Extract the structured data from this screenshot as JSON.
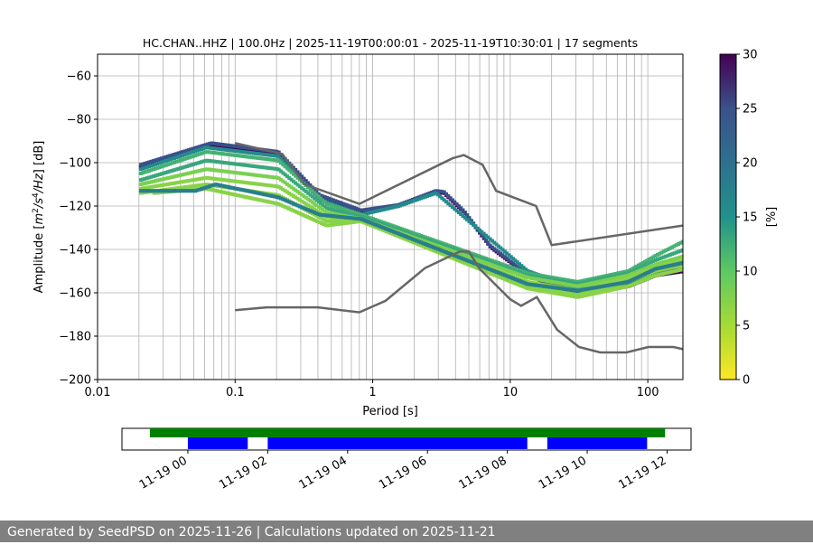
{
  "title": "HC.CHAN..HHZ | 100.0Hz | 2025-11-19T00:00:01 - 2025-11-19T10:30:01 | 17 segments",
  "footer": "Generated by SeedPSD on 2025-11-26 | Calculations updated on 2025-11-21",
  "colors": {
    "noise_model": "#666666",
    "grid": "#b0b0b0",
    "coverage_bar": "#008000",
    "segment_bar": "#0000ff",
    "footer_bg": "#808080"
  },
  "chart_data": [
    {
      "type": "heatmap",
      "title": "HC.CHAN..HHZ | 100.0Hz | 2025-11-19T00:00:01 - 2025-11-19T10:30:01 | 17 segments",
      "xlabel": "Period [s]",
      "ylabel": "Amplitude [m²/s⁴/Hz] [dB]",
      "ylabel_parts": [
        "Amplitude [",
        "m",
        "2",
        "/",
        "s",
        "4",
        "/",
        "Hz",
        "] [dB]"
      ],
      "x_scale": "log",
      "xlim": [
        0.01,
        180
      ],
      "ylim": [
        -200,
        -50
      ],
      "x_ticks": [
        0.01,
        0.1,
        1,
        10,
        100
      ],
      "x_tick_labels": [
        "0.01",
        "0.1",
        "1",
        "10",
        "100"
      ],
      "y_ticks": [
        -200,
        -180,
        -160,
        -140,
        -120,
        -100,
        -80,
        -60
      ],
      "y_tick_labels": [
        "−200",
        "−180",
        "−160",
        "−140",
        "−120",
        "−100",
        "−80",
        "−60"
      ],
      "grid": true,
      "colorbar": {
        "label": "[%]",
        "range": [
          0,
          30
        ],
        "ticks": [
          0,
          5,
          10,
          15,
          20,
          25,
          30
        ],
        "tick_labels": [
          "0",
          "5",
          "10",
          "15",
          "20",
          "25",
          "30"
        ],
        "colormap": "viridis_r"
      },
      "noise_models": [
        {
          "name": "high",
          "points": [
            [
              0.1,
              -91
            ],
            [
              0.22,
              -96
            ],
            [
              0.32,
              -110
            ],
            [
              0.8,
              -119
            ],
            [
              3.8,
              -98
            ],
            [
              4.6,
              -96.5
            ],
            [
              6.3,
              -101
            ],
            [
              7.9,
              -113
            ],
            [
              15.4,
              -120
            ],
            [
              20,
              -138
            ],
            [
              180,
              -129
            ]
          ]
        },
        {
          "name": "low",
          "points": [
            [
              0.1,
              -168
            ],
            [
              0.17,
              -166.7
            ],
            [
              0.4,
              -166.7
            ],
            [
              0.8,
              -169
            ],
            [
              1.24,
              -163.7
            ],
            [
              2.4,
              -148.6
            ],
            [
              4.3,
              -141
            ],
            [
              5.0,
              -141
            ],
            [
              6.0,
              -149
            ],
            [
              10,
              -163
            ],
            [
              12,
              -166
            ],
            [
              15.6,
              -162
            ],
            [
              21.9,
              -177
            ],
            [
              31.6,
              -185
            ],
            [
              45,
              -187.5
            ],
            [
              70,
              -187.5
            ],
            [
              101,
              -185
            ],
            [
              154,
              -185
            ],
            [
              180,
              -186
            ]
          ]
        }
      ],
      "psd_curves": [
        {
          "pct": 30,
          "points": [
            [
              0.02,
              -102
            ],
            [
              0.065,
              -92
            ],
            [
              0.2,
              -96
            ],
            [
              0.4,
              -116
            ],
            [
              0.8,
              -123
            ],
            [
              1.5,
              -120
            ],
            [
              2.8,
              -113.5
            ],
            [
              3.2,
              -114
            ],
            [
              4.5,
              -123
            ],
            [
              7,
              -139
            ],
            [
              10,
              -146.5
            ],
            [
              13,
              -152
            ],
            [
              30,
              -161
            ],
            [
              70,
              -157
            ],
            [
              110,
              -152
            ],
            [
              180,
              -150
            ]
          ]
        },
        {
          "pct": 25,
          "points": [
            [
              0.02,
              -101
            ],
            [
              0.065,
              -91
            ],
            [
              0.2,
              -95
            ],
            [
              0.4,
              -115
            ],
            [
              0.8,
              -122
            ],
            [
              1.5,
              -119.5
            ],
            [
              2.8,
              -113
            ],
            [
              3.2,
              -113.5
            ],
            [
              4.5,
              -122.5
            ],
            [
              7,
              -138.5
            ],
            [
              10,
              -146
            ],
            [
              13,
              -151.5
            ],
            [
              30,
              -160
            ],
            [
              70,
              -156
            ],
            [
              110,
              -151
            ],
            [
              180,
              -149
            ]
          ]
        },
        {
          "pct": 16,
          "points": [
            [
              0.02,
              -103
            ],
            [
              0.06,
              -93
            ],
            [
              0.2,
              -97
            ],
            [
              0.4,
              -117
            ],
            [
              0.8,
              -124
            ],
            [
              1.5,
              -120
            ],
            [
              2.8,
              -114
            ],
            [
              13,
              -150
            ],
            [
              30,
              -158
            ],
            [
              70,
              -154
            ],
            [
              110,
              -148
            ],
            [
              180,
              -146
            ]
          ]
        },
        {
          "pct": 12,
          "points": [
            [
              0.02,
              -105
            ],
            [
              0.06,
              -95
            ],
            [
              0.2,
              -99
            ],
            [
              0.45,
              -119
            ],
            [
              0.8,
              -124
            ],
            [
              13,
              -151
            ],
            [
              30,
              -155
            ],
            [
              70,
              -150
            ],
            [
              110,
              -143
            ],
            [
              180,
              -136
            ]
          ]
        },
        {
          "pct": 13,
          "points": [
            [
              0.02,
              -108
            ],
            [
              0.06,
              -99
            ],
            [
              0.2,
              -103
            ],
            [
              0.45,
              -121
            ],
            [
              0.8,
              -125
            ],
            [
              13,
              -152
            ],
            [
              30,
              -156
            ],
            [
              70,
              -151
            ],
            [
              110,
              -145
            ],
            [
              180,
              -140
            ]
          ]
        },
        {
          "pct": 8,
          "points": [
            [
              0.02,
              -110
            ],
            [
              0.06,
              -103
            ],
            [
              0.2,
              -107
            ],
            [
              0.45,
              -123
            ],
            [
              0.8,
              -126
            ],
            [
              13,
              -153
            ],
            [
              30,
              -157
            ],
            [
              70,
              -152
            ],
            [
              110,
              -147
            ],
            [
              180,
              -143
            ]
          ]
        },
        {
          "pct": 7,
          "points": [
            [
              0.02,
              -112
            ],
            [
              0.06,
              -107
            ],
            [
              0.2,
              -111
            ],
            [
              0.45,
              -125
            ],
            [
              0.8,
              -127
            ],
            [
              13,
              -155
            ],
            [
              30,
              -159
            ],
            [
              70,
              -153
            ],
            [
              110,
              -148
            ],
            [
              180,
              -145
            ]
          ]
        },
        {
          "pct": 7,
          "points": [
            [
              0.02,
              -114
            ],
            [
              0.06,
              -110
            ],
            [
              0.2,
              -115
            ],
            [
              0.45,
              -127
            ],
            [
              0.8,
              -127
            ],
            [
              13,
              -157
            ],
            [
              30,
              -161
            ],
            [
              70,
              -155
            ],
            [
              110,
              -150
            ],
            [
              180,
              -147
            ]
          ]
        },
        {
          "pct": 7,
          "points": [
            [
              0.025,
              -114
            ],
            [
              0.06,
              -112
            ],
            [
              0.2,
              -119
            ],
            [
              0.45,
              -129
            ],
            [
              0.8,
              -127
            ],
            [
              13,
              -158
            ],
            [
              30,
              -162
            ],
            [
              70,
              -157
            ],
            [
              110,
              -152
            ],
            [
              180,
              -149
            ]
          ]
        },
        {
          "pct": 18,
          "points": [
            [
              0.02,
              -113
            ],
            [
              0.05,
              -113
            ],
            [
              0.07,
              -110
            ],
            [
              0.2,
              -116
            ],
            [
              0.4,
              -124
            ],
            [
              0.8,
              -126
            ],
            [
              13,
              -156
            ],
            [
              30,
              -159
            ],
            [
              70,
              -155
            ],
            [
              110,
              -149
            ],
            [
              180,
              -146
            ]
          ]
        }
      ]
    },
    {
      "type": "bar",
      "title": "",
      "x_tick_labels": [
        "11-19 00",
        "11-19 02",
        "11-19 04",
        "11-19 06",
        "11-19 08",
        "11-19 10",
        "11-19 12"
      ],
      "x_ticks_hours": [
        0,
        2,
        4,
        6,
        8,
        10,
        12
      ],
      "xlim_hours": [
        -1.65,
        12.6
      ],
      "coverage": [
        {
          "start_h": -0.95,
          "end_h": 11.95
        }
      ],
      "segments": [
        {
          "start_h": 0.0,
          "end_h": 1.5
        },
        {
          "start_h": 2.0,
          "end_h": 8.5
        },
        {
          "start_h": 9.0,
          "end_h": 11.5
        }
      ]
    }
  ]
}
